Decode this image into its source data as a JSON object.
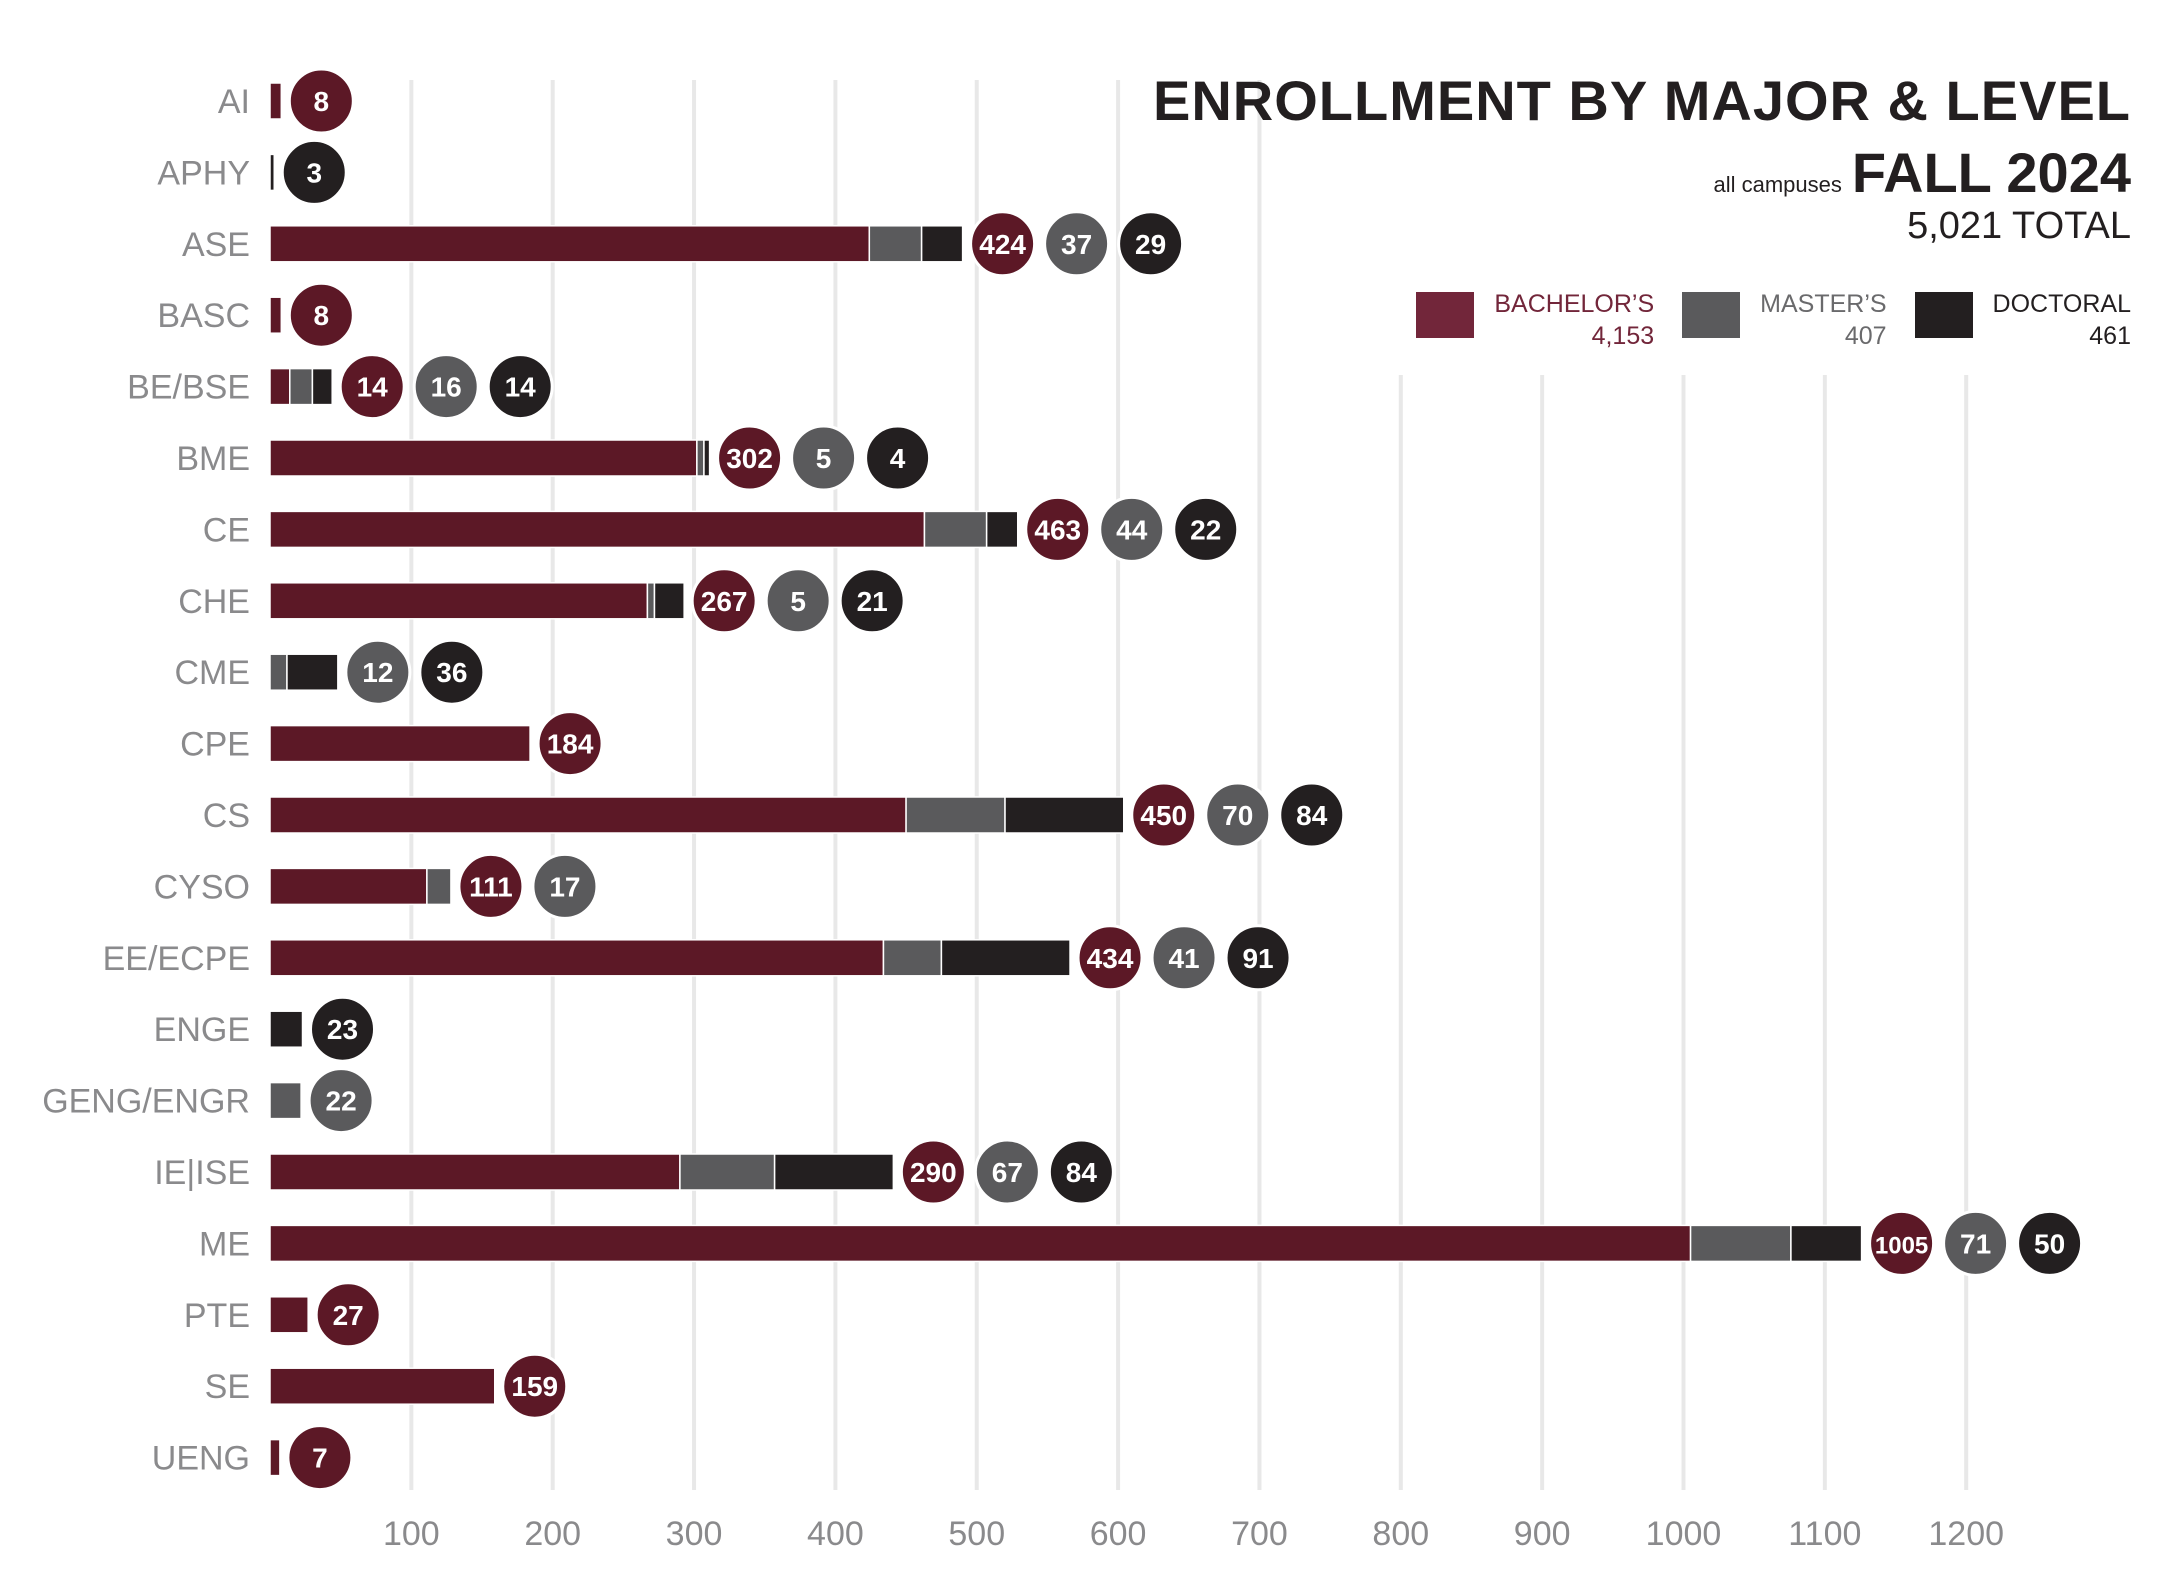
{
  "title": "ENROLLMENT BY MAJOR & LEVEL",
  "subtitle_prefix": "all campuses",
  "subtitle": "FALL 2024",
  "total_label": "5,021 TOTAL",
  "colors": {
    "bachelor": "#5C1826",
    "bachelor_legend": "#72263A",
    "master": "#5A5A5C",
    "doctoral": "#231F20",
    "grid": "#E8E8E8",
    "axis_text": "#8A8A8C"
  },
  "legend": [
    {
      "key": "bachelor",
      "label": "BACHELOR’S",
      "total": "4,153",
      "text_color": "#72263A"
    },
    {
      "key": "master",
      "label": "MASTER’S",
      "total": "407",
      "text_color": "#6A6A6C"
    },
    {
      "key": "doctoral",
      "label": "DOCTORAL",
      "total": "461",
      "text_color": "#231F20"
    }
  ],
  "chart_data": {
    "type": "bar",
    "orientation": "horizontal",
    "stacked": true,
    "title": "ENROLLMENT BY MAJOR & LEVEL — FALL 2024",
    "xlabel": "",
    "ylabel": "",
    "xlim": [
      0,
      1300
    ],
    "x_ticks": [
      100,
      200,
      300,
      400,
      500,
      600,
      700,
      800,
      900,
      1000,
      1100,
      1200
    ],
    "grid": true,
    "legend_position": "top-right",
    "categories": [
      "AI",
      "APHY",
      "ASE",
      "BASC",
      "BE/BSE",
      "BME",
      "CE",
      "CHE",
      "CME",
      "CPE",
      "CS",
      "CYSO",
      "EE/ECPE",
      "ENGE",
      "GENG/ENGR",
      "IE|ISE",
      "ME",
      "PTE",
      "SE",
      "UENG"
    ],
    "series": [
      {
        "name": "BACHELOR'S",
        "key": "bachelor",
        "values": [
          8,
          0,
          424,
          8,
          14,
          302,
          463,
          267,
          0,
          184,
          450,
          111,
          434,
          0,
          0,
          290,
          1005,
          27,
          159,
          7
        ]
      },
      {
        "name": "MASTER'S",
        "key": "master",
        "values": [
          0,
          0,
          37,
          0,
          16,
          5,
          44,
          5,
          12,
          0,
          70,
          17,
          41,
          0,
          22,
          67,
          71,
          0,
          0,
          0
        ]
      },
      {
        "name": "DOCTORAL",
        "key": "doctoral",
        "values": [
          0,
          3,
          29,
          0,
          14,
          4,
          22,
          21,
          36,
          0,
          84,
          0,
          91,
          23,
          0,
          84,
          50,
          0,
          0,
          0
        ]
      }
    ],
    "totals": {
      "bachelor": 4153,
      "master": 407,
      "doctoral": 461,
      "all": 5021
    }
  }
}
